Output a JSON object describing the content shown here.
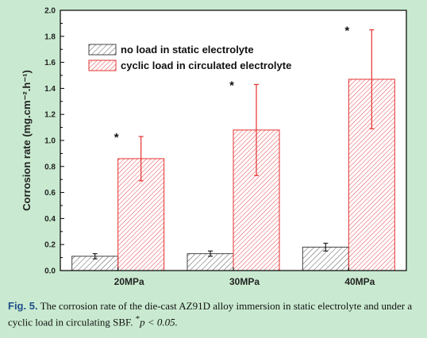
{
  "chart_data": {
    "type": "bar",
    "title": "",
    "xlabel": "",
    "ylabel": "Corrosion rate (mg.cm⁻².h⁻¹)",
    "ylim": [
      0,
      2.0
    ],
    "yticks": [
      "0.0",
      "0.2",
      "0.4",
      "0.6",
      "0.8",
      "1.0",
      "1.2",
      "1.4",
      "1.6",
      "1.8",
      "2.0"
    ],
    "categories": [
      "20MPa",
      "30MPa",
      "40MPa"
    ],
    "series": [
      {
        "name": "no load in static electrolyte",
        "values": [
          0.11,
          0.13,
          0.18
        ],
        "errors": [
          0.02,
          0.02,
          0.03
        ],
        "color": "#555555",
        "significance": [
          "",
          "",
          ""
        ]
      },
      {
        "name": "cyclic load in circulated electrolyte",
        "values": [
          0.86,
          1.08,
          1.47
        ],
        "errors": [
          0.17,
          0.35,
          0.38
        ],
        "color": "#e53030",
        "significance": [
          "*",
          "*",
          "*"
        ]
      }
    ],
    "legend_position": "top-left",
    "grid": false
  },
  "caption": {
    "label": "Fig. 5.",
    "text": "The corrosion rate of the die-cast AZ91D alloy immersion in static electrolyte and under a cyclic load in circulating SBF.",
    "star": "*",
    "p_text": "p < 0.05."
  }
}
